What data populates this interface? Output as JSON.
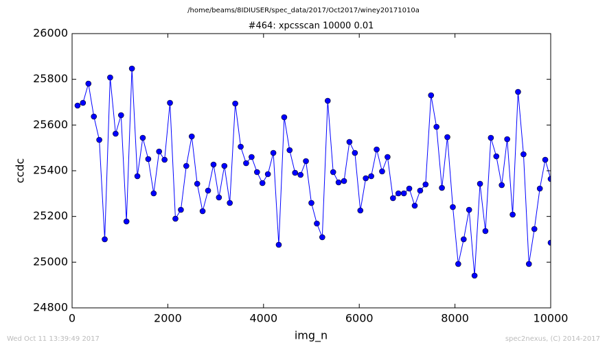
{
  "chart_data": {
    "type": "line",
    "suptitle": "/home/beams/8IDIUSER/spec_data/2017/Oct2017/winey20171010a",
    "title": "#464: xpcsscan 10000 0.01",
    "x_label": "img_n",
    "y_label": "ccdc",
    "timestamp": "Wed Oct 11 13:39:49 2017",
    "credit": "spec2nexus, (C) 2014-2017",
    "x": [
      114,
      227,
      341,
      455,
      568,
      682,
      795,
      909,
      1023,
      1136,
      1250,
      1364,
      1477,
      1591,
      1705,
      1818,
      1932,
      2045,
      2159,
      2273,
      2386,
      2500,
      2614,
      2727,
      2841,
      2955,
      3068,
      3182,
      3295,
      3409,
      3523,
      3636,
      3750,
      3864,
      3977,
      4091,
      4205,
      4318,
      4432,
      4545,
      4659,
      4773,
      4886,
      5000,
      5114,
      5227,
      5341,
      5455,
      5568,
      5682,
      5795,
      5909,
      6023,
      6136,
      6250,
      6364,
      6477,
      6591,
      6705,
      6818,
      6932,
      7045,
      7159,
      7273,
      7386,
      7500,
      7614,
      7727,
      7841,
      7955,
      8068,
      8182,
      8295,
      8409,
      8523,
      8636,
      8750,
      8864,
      8977,
      9091,
      9205,
      9318,
      9432,
      9545,
      9659,
      9773,
      9886,
      10000,
      10000
    ],
    "series": [
      {
        "name": "ccdc",
        "color": "#0000ff",
        "values": [
          25685,
          25697,
          25781,
          25637,
          25535,
          25100,
          25808,
          25562,
          25643,
          25178,
          25847,
          25376,
          25544,
          25451,
          25301,
          25484,
          25448,
          25697,
          25190,
          25229,
          25421,
          25550,
          25343,
          25223,
          25313,
          25427,
          25283,
          25421,
          25259,
          25694,
          25505,
          25433,
          25460,
          25394,
          25346,
          25385,
          25478,
          25076,
          25634,
          25490,
          25391,
          25382,
          25442,
          25259,
          25169,
          25109,
          25706,
          25394,
          25349,
          25355,
          25526,
          25478,
          25226,
          25367,
          25376,
          25493,
          25397,
          25460,
          25280,
          25301,
          25301,
          25322,
          25247,
          25313,
          25340,
          25730,
          25592,
          25325,
          25547,
          25241,
          24992,
          25100,
          25229,
          24941,
          25343,
          25136,
          25544,
          25463,
          25337,
          25538,
          25208,
          25745,
          25472,
          24992,
          25145,
          25322,
          25448,
          25364,
          25085
        ]
      }
    ],
    "xlim": [
      0,
      10000
    ],
    "xticks": [
      0,
      2000,
      4000,
      6000,
      8000,
      10000
    ],
    "ylim": [
      24800,
      26000
    ],
    "yticks": [
      24800,
      25000,
      25200,
      25400,
      25600,
      25800,
      26000
    ],
    "grid": false
  }
}
